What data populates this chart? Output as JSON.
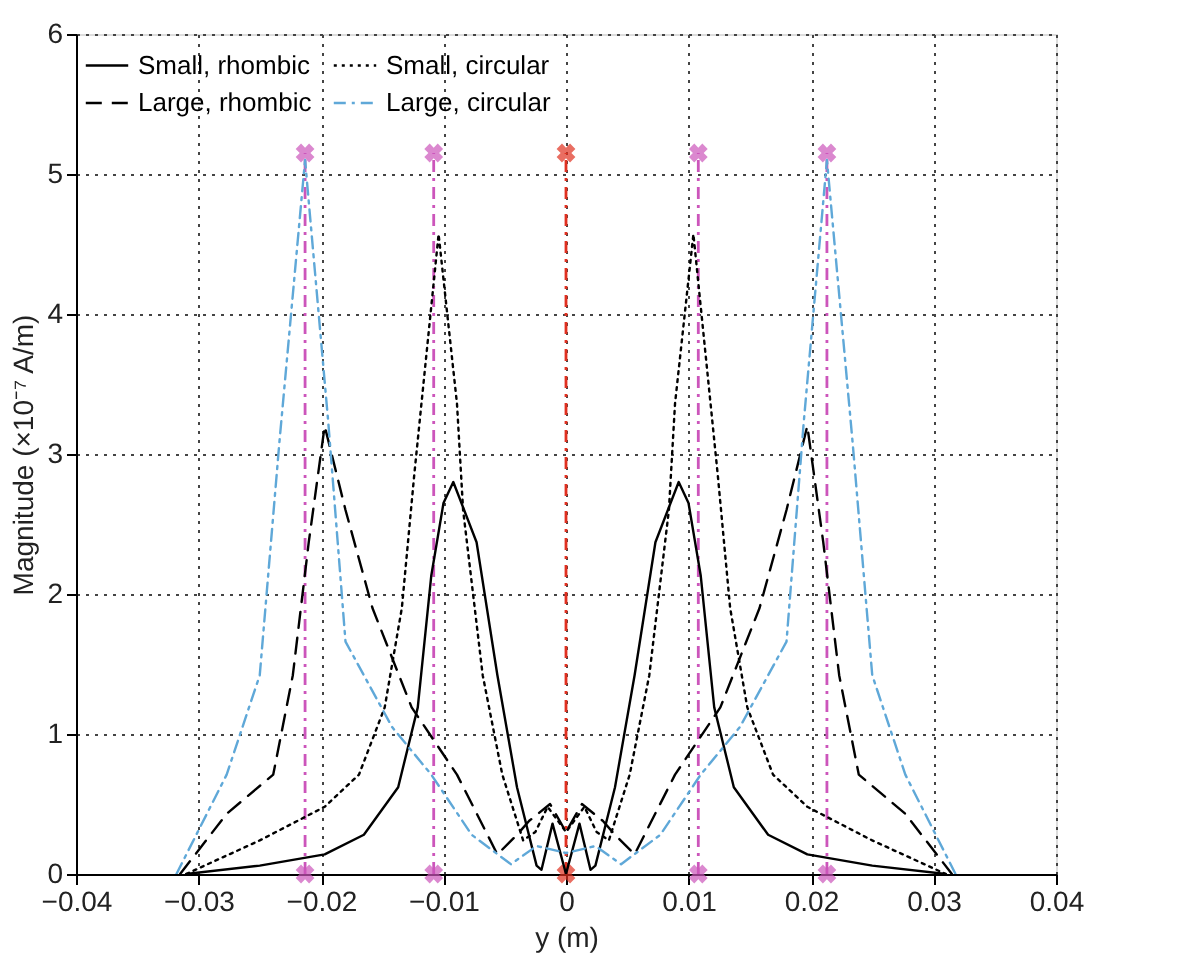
{
  "chart_data": {
    "type": "line",
    "xlabel": "y (m)",
    "ylabel": "Magnitude (×10⁻⁷ A/m)",
    "xlim": [
      -0.04,
      0.04
    ],
    "ylim": [
      0,
      6
    ],
    "xticks": [
      -0.04,
      -0.03,
      -0.02,
      -0.01,
      0,
      0.01,
      0.02,
      0.03,
      0.04
    ],
    "yticks": [
      0,
      1,
      2,
      3,
      4,
      5,
      6
    ],
    "grid": true,
    "legend": "top left",
    "series": [
      {
        "name": "Small, rhombic",
        "color": "#000000",
        "line_style": "solid",
        "x": [
          -0.031,
          -0.025,
          -0.0197,
          -0.0165,
          -0.0137,
          -0.0121,
          -0.011,
          -0.01,
          -0.0092,
          -0.0073,
          -0.0056,
          -0.004,
          -0.0024,
          -0.002,
          -0.0011,
          0,
          0.0011,
          0.002,
          0.0024,
          0.004,
          0.0056,
          0.0073,
          0.0092,
          0.01,
          0.011,
          0.0121,
          0.0137,
          0.0165,
          0.0197,
          0.025,
          0.031
        ],
        "values": [
          0,
          0.06,
          0.14,
          0.28,
          0.62,
          1.19,
          2.13,
          2.65,
          2.8,
          2.37,
          1.42,
          0.62,
          0.06,
          0.03,
          0.36,
          0,
          0.36,
          0.03,
          0.06,
          0.62,
          1.42,
          2.37,
          2.8,
          2.65,
          2.13,
          1.19,
          0.62,
          0.28,
          0.14,
          0.06,
          0
        ]
      },
      {
        "name": "Small, circular",
        "color": "#000000",
        "line_style": "dotted",
        "x": [
          -0.031,
          -0.025,
          -0.0197,
          -0.0169,
          -0.0148,
          -0.0134,
          -0.0124,
          -0.0118,
          -0.0104,
          -0.0089,
          -0.0084,
          -0.0068,
          -0.0052,
          -0.0035,
          -0.0025,
          -0.0015,
          0,
          0.0015,
          0.0025,
          0.0035,
          0.0052,
          0.0068,
          0.0084,
          0.0089,
          0.0104,
          0.0118,
          0.0124,
          0.0134,
          0.0148,
          0.0169,
          0.0197,
          0.025,
          0.031
        ],
        "values": [
          0,
          0.24,
          0.48,
          0.71,
          1.19,
          1.9,
          2.84,
          3.36,
          4.57,
          3.36,
          2.6,
          1.42,
          0.71,
          0.24,
          0.3,
          0.48,
          0.3,
          0.48,
          0.3,
          0.24,
          0.71,
          1.42,
          2.6,
          3.36,
          4.57,
          3.36,
          2.84,
          1.9,
          1.19,
          0.71,
          0.48,
          0.24,
          0
        ]
      },
      {
        "name": "Large, rhombic",
        "color": "#000000",
        "line_style": "dashed",
        "x": [
          -0.0315,
          -0.0277,
          -0.0239,
          -0.0223,
          -0.021,
          -0.0197,
          -0.018,
          -0.0158,
          -0.0126,
          -0.0089,
          -0.0056,
          -0.004,
          -0.003,
          -0.0013,
          0,
          0.0013,
          0.003,
          0.004,
          0.0056,
          0.0089,
          0.0126,
          0.0158,
          0.018,
          0.0197,
          0.021,
          0.0223,
          0.0239,
          0.0277,
          0.0315
        ],
        "values": [
          0,
          0.43,
          0.71,
          1.42,
          2.37,
          3.2,
          2.6,
          1.9,
          1.19,
          0.71,
          0.14,
          0.28,
          0.38,
          0.5,
          0.3,
          0.5,
          0.38,
          0.28,
          0.14,
          0.71,
          1.19,
          1.9,
          2.6,
          3.2,
          2.37,
          1.42,
          0.71,
          0.43,
          0
        ]
      },
      {
        "name": "Large, circular",
        "color": "#5fa8d8",
        "line_style": "dashdot",
        "x": [
          -0.0318,
          -0.0277,
          -0.025,
          -0.0234,
          -0.0213,
          -0.0194,
          -0.018,
          -0.0142,
          -0.011,
          -0.0077,
          -0.0045,
          -0.0024,
          0,
          0.0024,
          0.0045,
          0.0077,
          0.011,
          0.0142,
          0.018,
          0.0194,
          0.0213,
          0.0234,
          0.025,
          0.0277,
          0.0318
        ],
        "values": [
          0,
          0.71,
          1.42,
          3.08,
          5.1,
          3.22,
          1.66,
          1.05,
          0.71,
          0.28,
          0.07,
          0.2,
          0.15,
          0.2,
          0.07,
          0.28,
          0.71,
          1.05,
          1.66,
          3.22,
          5.1,
          3.08,
          1.42,
          0.71,
          0
        ]
      },
      {
        "color": "#cc55bb",
        "line_style": "dashdot",
        "marker": "cross",
        "x": [
          -0.0213,
          -0.0213
        ],
        "values": [
          0,
          5.15
        ]
      },
      {
        "color": "#cc55bb",
        "line_style": "dashdot",
        "marker": "cross",
        "x": [
          -0.0108,
          -0.0108
        ],
        "values": [
          0,
          5.15
        ]
      },
      {
        "color": "#e03020",
        "line_style": "dashdot",
        "marker": "cross",
        "x": [
          0,
          0
        ],
        "values": [
          0,
          5.15
        ]
      },
      {
        "color": "#cc55bb",
        "line_style": "dashdot",
        "marker": "cross",
        "x": [
          0.0108,
          0.0108
        ],
        "values": [
          0,
          5.15
        ]
      },
      {
        "color": "#cc55bb",
        "line_style": "dashdot",
        "marker": "cross",
        "x": [
          0.0213,
          0.0213
        ],
        "values": [
          0,
          5.15
        ]
      }
    ]
  }
}
